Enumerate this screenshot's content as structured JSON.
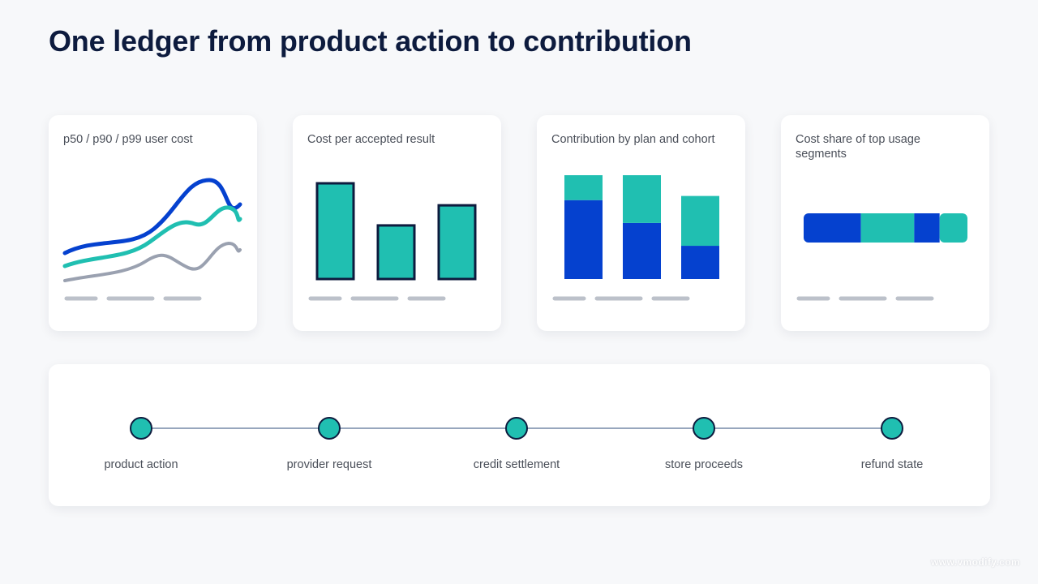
{
  "page": {
    "title": "One ledger from product action to contribution"
  },
  "colors": {
    "navy": "#0d1b3e",
    "teal": "#20bfb1",
    "blue": "#0541cf",
    "gray_line": "#9aa1b0",
    "placeholder": "#bcc1ca",
    "connector": "#97a6bd"
  },
  "cards": [
    {
      "label": "p50 / p90 / p99 user cost",
      "chart_kind": "multi-line",
      "series_colors": [
        "#0541cf",
        "#20bfb1",
        "#9aa1b0"
      ]
    },
    {
      "label": "Cost per accepted result",
      "chart_kind": "bar",
      "values": [
        100,
        56,
        77
      ]
    },
    {
      "label": "Contribution by plan and cohort",
      "chart_kind": "stacked-bar",
      "stacks": [
        {
          "bottom": 76,
          "top": 24
        },
        {
          "bottom": 54,
          "top": 46
        },
        {
          "bottom": 32,
          "top": 48
        }
      ]
    },
    {
      "label": "Cost share of top usage segments",
      "chart_kind": "segmented-bar",
      "segments": [
        {
          "share": 35,
          "color": "#0541cf"
        },
        {
          "share": 32.5,
          "color": "#20bfb1"
        },
        {
          "share": 15.5,
          "color": "#0541cf"
        },
        {
          "share": 17,
          "color": "#20bfb1"
        }
      ]
    }
  ],
  "timeline": {
    "steps": [
      {
        "label": "product action"
      },
      {
        "label": "provider request"
      },
      {
        "label": "credit settlement"
      },
      {
        "label": "store proceeds"
      },
      {
        "label": "refund state"
      }
    ]
  },
  "watermark": {
    "text": "www.vmodify.com"
  }
}
